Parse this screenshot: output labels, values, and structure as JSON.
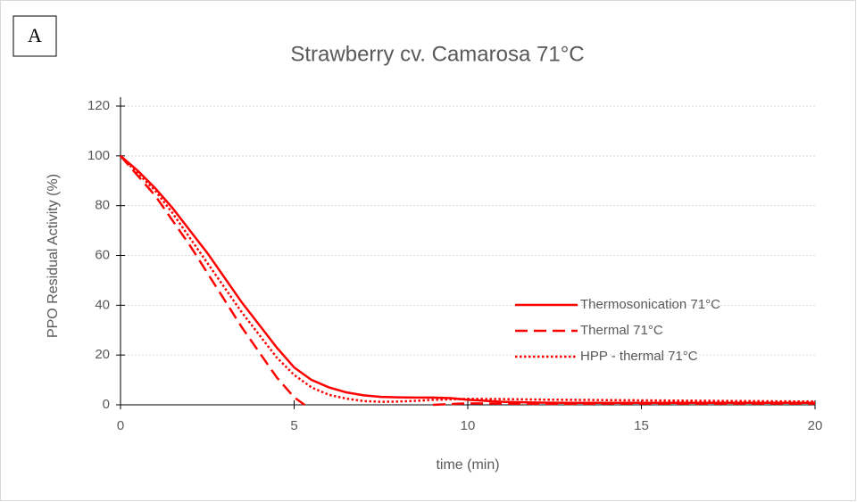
{
  "panel_label": "A",
  "chart_data": {
    "type": "line",
    "title": "Strawberry cv. Camarosa 71°C",
    "x_label": "time (min)",
    "y_label": "PPO Residual Activity (%)",
    "x": [
      0,
      0.5,
      1,
      1.5,
      2,
      2.5,
      3,
      3.5,
      4,
      4.5,
      5,
      5.3,
      5.5,
      6,
      6.5,
      7,
      7.5,
      8,
      8.5,
      9,
      9.5,
      10,
      11,
      12,
      13,
      14,
      15,
      16,
      17,
      18,
      19,
      20
    ],
    "series": [
      {
        "name": "Thermosonication  71°C",
        "color": "#ff0000",
        "dash": "solid",
        "values": [
          100,
          94,
          87,
          79,
          70,
          61,
          51,
          41,
          32,
          23,
          15,
          12,
          10,
          7,
          5,
          3.8,
          3.2,
          3,
          2.9,
          2.9,
          2.7,
          2,
          1.2,
          0.9,
          0.8,
          0.8,
          0.8,
          0.8,
          0.8,
          0.8,
          0.8,
          0.8
        ]
      },
      {
        "name": "Thermal  71°C",
        "color": "#ff0000",
        "dash": "dashed",
        "values": [
          100,
          92,
          84,
          74,
          64,
          53,
          42,
          31,
          21,
          11,
          3,
          0,
          null,
          null,
          null,
          null,
          null,
          null,
          null,
          0,
          0.3,
          0.6,
          0.5,
          0.4,
          0.4,
          0.5,
          0.5,
          0.5,
          0.5,
          0.5,
          0.5,
          0.5
        ]
      },
      {
        "name": "HPP - thermal  71°C",
        "color": "#ff0000",
        "dash": "dotted",
        "values": [
          100,
          93,
          86,
          77,
          67,
          57,
          47,
          37,
          28,
          19,
          12,
          9,
          7,
          4,
          2.5,
          1.5,
          1.2,
          1.3,
          1.6,
          2,
          2.2,
          2.4,
          2.3,
          2.1,
          2,
          1.9,
          1.8,
          1.7,
          1.6,
          1.5,
          1.4,
          1.3
        ]
      }
    ],
    "xlim": [
      0,
      20
    ],
    "xticks": [
      0,
      5,
      10,
      15,
      20
    ],
    "ylim": [
      0,
      120
    ],
    "yticks": [
      0,
      20,
      40,
      60,
      80,
      100,
      120
    ],
    "grid": true,
    "legend": "right"
  }
}
